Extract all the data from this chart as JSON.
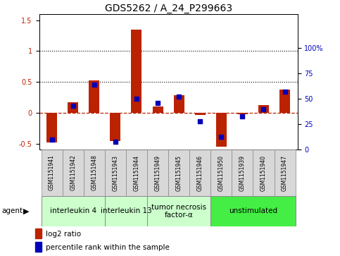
{
  "title": "GDS5262 / A_24_P299663",
  "samples": [
    "GSM1151941",
    "GSM1151942",
    "GSM1151948",
    "GSM1151943",
    "GSM1151944",
    "GSM1151949",
    "GSM1151945",
    "GSM1151946",
    "GSM1151950",
    "GSM1151939",
    "GSM1151940",
    "GSM1151947"
  ],
  "log2_ratio": [
    -0.48,
    0.17,
    0.52,
    -0.46,
    1.35,
    0.1,
    0.28,
    -0.04,
    -0.55,
    -0.02,
    0.13,
    0.38
  ],
  "percentile": [
    10,
    43,
    64,
    8,
    50,
    46,
    52,
    28,
    13,
    33,
    40,
    57
  ],
  "agents": [
    {
      "label": "interleukin 4",
      "start": 0,
      "end": 3,
      "color": "#ccffcc"
    },
    {
      "label": "interleukin 13",
      "start": 3,
      "end": 5,
      "color": "#ccffcc"
    },
    {
      "label": "tumor necrosis\nfactor-α",
      "start": 5,
      "end": 8,
      "color": "#ccffcc"
    },
    {
      "label": "unstimulated",
      "start": 8,
      "end": 12,
      "color": "#44ee44"
    }
  ],
  "ylim_left": [
    -0.6,
    1.6
  ],
  "ylim_right": [
    0,
    133.333
  ],
  "yticks_left": [
    -0.5,
    0.0,
    0.5,
    1.0,
    1.5
  ],
  "yticks_right": [
    0,
    25,
    50,
    75,
    100
  ],
  "bar_color": "#bb2200",
  "scatter_color": "#0000bb",
  "bar_width": 0.5,
  "agent_label_fontsize": 7.5,
  "tick_label_fontsize": 7,
  "title_fontsize": 10,
  "legend_fontsize": 7.5
}
